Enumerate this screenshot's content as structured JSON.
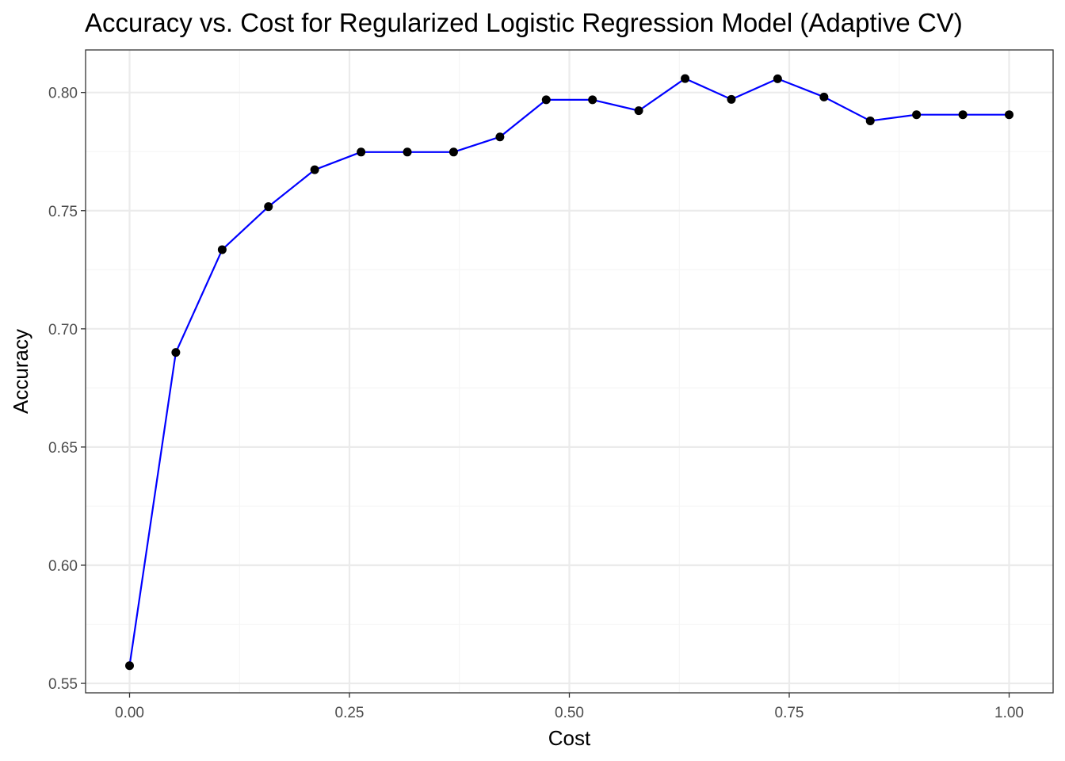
{
  "chart_data": {
    "type": "line",
    "title": "Accuracy vs. Cost for Regularized Logistic Regression Model (Adaptive CV)",
    "xlabel": "Cost",
    "ylabel": "Accuracy",
    "xlim": [
      -0.05,
      1.05
    ],
    "ylim": [
      0.546,
      0.818
    ],
    "x_ticks": [
      0.0,
      0.25,
      0.5,
      0.75,
      1.0
    ],
    "x_tick_labels": [
      "0.00",
      "0.25",
      "0.50",
      "0.75",
      "1.00"
    ],
    "y_ticks": [
      0.55,
      0.6,
      0.65,
      0.7,
      0.75,
      0.8
    ],
    "y_tick_labels": [
      "0.55",
      "0.60",
      "0.65",
      "0.70",
      "0.75",
      "0.80"
    ],
    "grid": true,
    "colors": {
      "line": "#0000ff",
      "point": "#000000",
      "grid_major": "#ebebeb",
      "grid_minor": "#f5f5f5"
    },
    "series": [
      {
        "x": [
          0.0,
          0.0526,
          0.1053,
          0.1579,
          0.2105,
          0.2632,
          0.3158,
          0.3684,
          0.4211,
          0.4737,
          0.5263,
          0.5789,
          0.6316,
          0.6842,
          0.7368,
          0.7895,
          0.8421,
          0.8947,
          0.9474,
          1.0
        ],
        "y": [
          0.5575,
          0.69,
          0.7335,
          0.7517,
          0.7673,
          0.7748,
          0.7748,
          0.7748,
          0.7812,
          0.7969,
          0.7969,
          0.7923,
          0.8059,
          0.7971,
          0.8058,
          0.7981,
          0.788,
          0.7906,
          0.7906,
          0.7906
        ]
      }
    ]
  }
}
